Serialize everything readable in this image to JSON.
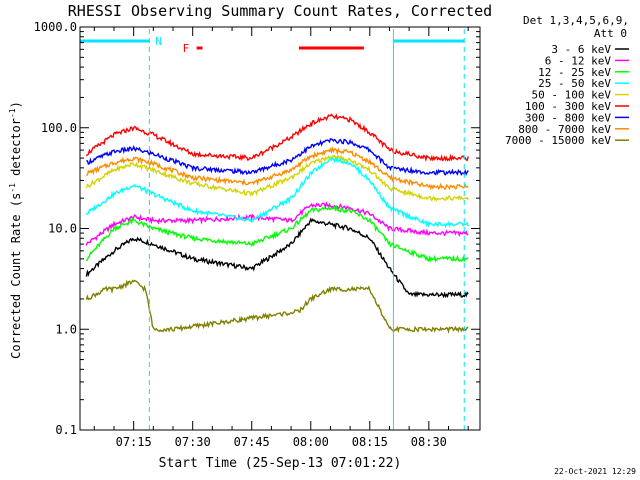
{
  "chart_data": {
    "type": "line",
    "title": "RHESSI Observing Summary Count Rates, Corrected",
    "xlabel": "Start Time (25-Sep-13 07:01:22)",
    "ylabel_main": "Corrected Count Rate (s",
    "ylabel_sup1": "-1",
    "ylabel_mid": " detector",
    "ylabel_sup2": "-1",
    "ylabel_end": ")",
    "y_scale": "log",
    "ylim": [
      0.1,
      1000
    ],
    "xlim": [
      "07:01:22",
      "08:43:00"
    ],
    "y_ticks": [
      "0.1",
      "1.0",
      "10.0",
      "100.0",
      "1000.0"
    ],
    "x_ticks": [
      "07:15",
      "07:30",
      "07:45",
      "08:00",
      "08:15",
      "08:30"
    ],
    "legend_header": [
      "Det 1,3,4,5,6,9,",
      "Att 0"
    ],
    "legend_position": "right",
    "footer_timestamp": "22-Oct-2021 12:29",
    "annotations": {
      "night_label": "N",
      "flare_label": "F"
    },
    "night_intervals": [
      [
        "07:01:22",
        "07:19:00"
      ],
      [
        "08:21:00",
        "08:39:00"
      ]
    ],
    "flare_intervals": [
      [
        "07:31:00",
        "07:32:30"
      ],
      [
        "07:57:00",
        "08:13:30"
      ]
    ],
    "attenuator_markers": [
      "07:01:22",
      "07:19:00",
      "08:21:00",
      "08:39:00"
    ],
    "series": [
      {
        "name": "3 - 6 keV",
        "color": "#000000",
        "x": [
          "07:03",
          "07:10",
          "07:15",
          "07:20",
          "07:30",
          "07:45",
          "07:55",
          "08:00",
          "08:05",
          "08:10",
          "08:15",
          "08:20",
          "08:25",
          "08:30",
          "08:40"
        ],
        "values": [
          3.5,
          6,
          8,
          7,
          5,
          4,
          7,
          12,
          11,
          10,
          8,
          4,
          2.2,
          2.2,
          2.2
        ]
      },
      {
        "name": "6 - 12 keV",
        "color": "#ff00ff",
        "x": [
          "07:03",
          "07:10",
          "07:15",
          "07:20",
          "07:30",
          "07:45",
          "07:55",
          "08:00",
          "08:05",
          "08:10",
          "08:15",
          "08:20",
          "08:30",
          "08:40"
        ],
        "values": [
          7,
          11,
          13,
          12,
          12,
          13,
          12,
          17,
          17,
          16,
          14,
          10,
          9,
          9
        ]
      },
      {
        "name": "12 - 25 keV",
        "color": "#00ff00",
        "x": [
          "07:03",
          "07:10",
          "07:15",
          "07:20",
          "07:30",
          "07:45",
          "07:55",
          "08:00",
          "08:05",
          "08:10",
          "08:15",
          "08:20",
          "08:30",
          "08:40"
        ],
        "values": [
          5,
          10,
          12,
          10,
          8,
          7,
          10,
          15,
          16,
          15,
          12,
          7,
          5,
          5
        ]
      },
      {
        "name": "25 - 50 keV",
        "color": "#00ffff",
        "x": [
          "07:03",
          "07:10",
          "07:15",
          "07:20",
          "07:30",
          "07:45",
          "07:55",
          "08:00",
          "08:05",
          "08:10",
          "08:15",
          "08:20",
          "08:30",
          "08:40"
        ],
        "values": [
          14,
          22,
          27,
          22,
          15,
          12,
          20,
          35,
          50,
          45,
          30,
          16,
          11,
          11
        ]
      },
      {
        "name": "50 - 100 keV",
        "color": "#d4d400",
        "x": [
          "07:03",
          "07:10",
          "07:15",
          "07:20",
          "07:30",
          "07:45",
          "07:55",
          "08:00",
          "08:05",
          "08:10",
          "08:15",
          "08:20",
          "08:30",
          "08:40"
        ],
        "values": [
          26,
          38,
          44,
          38,
          28,
          22,
          32,
          44,
          52,
          48,
          38,
          25,
          20,
          20
        ]
      },
      {
        "name": "100 - 300 keV",
        "color": "#ff0000",
        "x": [
          "07:03",
          "07:10",
          "07:15",
          "07:20",
          "07:30",
          "07:45",
          "07:55",
          "08:00",
          "08:05",
          "08:10",
          "08:15",
          "08:20",
          "08:30",
          "08:40"
        ],
        "values": [
          55,
          85,
          100,
          85,
          55,
          50,
          80,
          110,
          130,
          120,
          90,
          60,
          50,
          50
        ]
      },
      {
        "name": "300 - 800 keV",
        "color": "#0000ff",
        "x": [
          "07:03",
          "07:10",
          "07:15",
          "07:20",
          "07:30",
          "07:45",
          "07:55",
          "08:00",
          "08:05",
          "08:10",
          "08:15",
          "08:20",
          "08:30",
          "08:40"
        ],
        "values": [
          45,
          58,
          62,
          55,
          40,
          36,
          48,
          65,
          75,
          72,
          60,
          40,
          36,
          36
        ]
      },
      {
        "name": "800 - 7000 keV",
        "color": "#ff8c00",
        "x": [
          "07:03",
          "07:10",
          "07:15",
          "07:20",
          "07:30",
          "07:45",
          "07:55",
          "08:00",
          "08:05",
          "08:10",
          "08:15",
          "08:20",
          "08:30",
          "08:40"
        ],
        "values": [
          35,
          45,
          50,
          44,
          32,
          28,
          38,
          52,
          60,
          57,
          46,
          32,
          26,
          26
        ]
      },
      {
        "name": "7000 - 15000 keV",
        "color": "#808000",
        "x": [
          "07:03",
          "07:08",
          "07:10",
          "07:15",
          "07:18",
          "07:20",
          "07:25",
          "07:57",
          "08:00",
          "08:05",
          "08:10",
          "08:15",
          "08:20",
          "08:40"
        ],
        "values": [
          2.0,
          2.5,
          2.5,
          3.0,
          2.5,
          1.0,
          1.0,
          1.5,
          2.0,
          2.5,
          2.5,
          2.5,
          1.0,
          1.0
        ]
      }
    ]
  }
}
